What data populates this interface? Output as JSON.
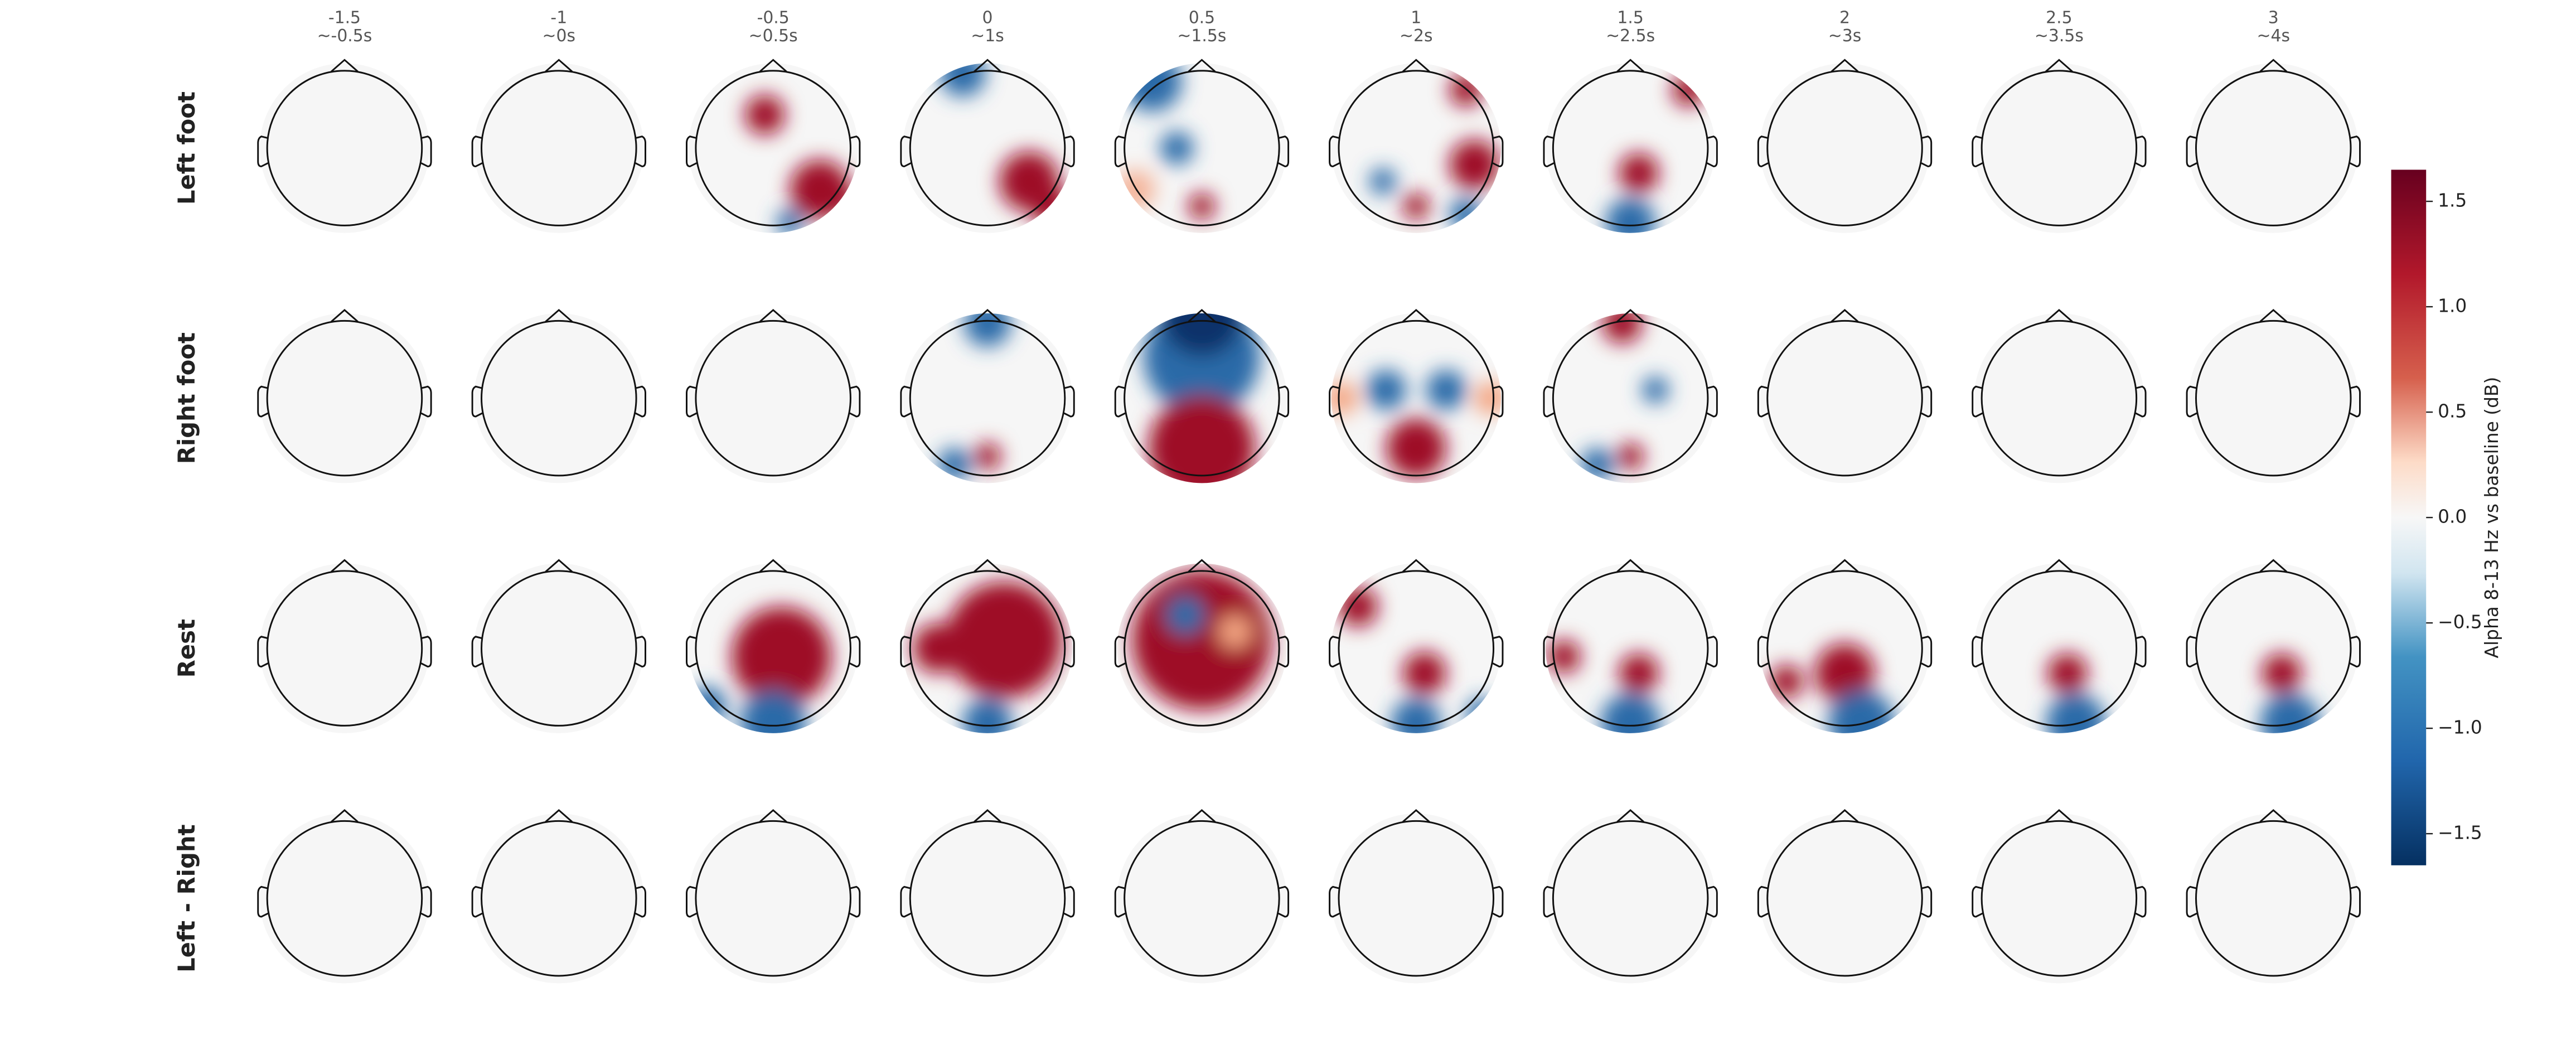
{
  "chart_data": {
    "type": "topomap",
    "columns": [
      {
        "label": "-1.5",
        "sublabel": "~-0.5s"
      },
      {
        "label": "-1",
        "sublabel": "~0s"
      },
      {
        "label": "-0.5",
        "sublabel": "~0.5s"
      },
      {
        "label": "0",
        "sublabel": "~1s"
      },
      {
        "label": "0.5",
        "sublabel": "~1.5s"
      },
      {
        "label": "1",
        "sublabel": "~2s"
      },
      {
        "label": "1.5",
        "sublabel": "~2.5s"
      },
      {
        "label": "2",
        "sublabel": "~3s"
      },
      {
        "label": "2.5",
        "sublabel": "~3.5s"
      },
      {
        "label": "3",
        "sublabel": "~4s"
      }
    ],
    "rows": [
      "Left foot",
      "Right foot",
      "Rest",
      "Left - Right"
    ],
    "colorbar": {
      "label": "Alpha 8-13 Hz vs baseline (dB)",
      "lim": [
        -1.65,
        1.65
      ],
      "ticks": [
        1.5,
        {
          "value": 1,
          "label": "1.0"
        },
        0.5,
        {
          "value": 0,
          "label": "0.0"
        },
        {
          "value": -0.5,
          "label": "−0.5"
        },
        {
          "value": -1,
          "label": "−1.0"
        },
        {
          "value": -1.5,
          "label": "−1.5"
        }
      ]
    }
  }
}
